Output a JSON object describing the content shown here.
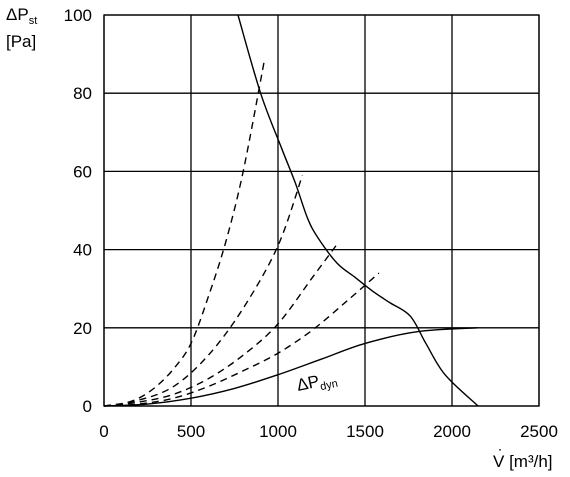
{
  "chart_data": {
    "type": "line",
    "title": "",
    "ylabel": {
      "line1_prefix": "ΔP",
      "line1_sub": "st",
      "line2": "[Pa]"
    },
    "xlabel": {
      "prefix": "V",
      "dot_accent": "˙",
      "unit": " [m³/h]"
    },
    "xlim": [
      0,
      2500
    ],
    "ylim": [
      0,
      100
    ],
    "x_ticks": [
      0,
      500,
      1000,
      1500,
      2000,
      2500
    ],
    "y_ticks": [
      0,
      20,
      40,
      60,
      80,
      100
    ],
    "grid": true,
    "series": [
      {
        "style": "solid",
        "points": [
          [
            770,
            100
          ],
          [
            900,
            80
          ],
          [
            1020,
            66
          ],
          [
            1100,
            57
          ],
          [
            1170,
            48
          ],
          [
            1230,
            43
          ],
          [
            1340,
            36.5
          ],
          [
            1440,
            33
          ],
          [
            1540,
            29.5
          ],
          [
            1640,
            26.5
          ],
          [
            1760,
            23
          ],
          [
            1850,
            16
          ],
          [
            1960,
            8
          ],
          [
            2150,
            0
          ]
        ]
      },
      {
        "name": "ΔP_dyn",
        "style": "solid",
        "annotation": {
          "prefix": "ΔP",
          "sub": "dyn"
        },
        "points": [
          [
            0,
            0
          ],
          [
            250,
            0.5
          ],
          [
            500,
            2
          ],
          [
            750,
            4.5
          ],
          [
            1000,
            8
          ],
          [
            1250,
            12
          ],
          [
            1500,
            16
          ],
          [
            1800,
            19
          ],
          [
            2150,
            20
          ]
        ]
      },
      {
        "style": "dashed",
        "points": [
          [
            0,
            0
          ],
          [
            100,
            0.5
          ],
          [
            200,
            2
          ],
          [
            300,
            5
          ],
          [
            400,
            9.5
          ],
          [
            500,
            16
          ],
          [
            600,
            28
          ],
          [
            700,
            42
          ],
          [
            800,
            60
          ],
          [
            920,
            88
          ]
        ]
      },
      {
        "style": "dashed",
        "points": [
          [
            0,
            0
          ],
          [
            200,
            1.5
          ],
          [
            400,
            5
          ],
          [
            600,
            13
          ],
          [
            800,
            25
          ],
          [
            1000,
            41
          ],
          [
            1140,
            59
          ]
        ]
      },
      {
        "style": "dashed",
        "points": [
          [
            0,
            0
          ],
          [
            200,
            1
          ],
          [
            400,
            3
          ],
          [
            600,
            7
          ],
          [
            800,
            13
          ],
          [
            1000,
            21
          ],
          [
            1200,
            33
          ],
          [
            1350,
            42
          ]
        ]
      },
      {
        "style": "dashed",
        "points": [
          [
            0,
            0
          ],
          [
            200,
            0.5
          ],
          [
            400,
            2
          ],
          [
            600,
            5
          ],
          [
            800,
            9
          ],
          [
            1000,
            13.5
          ],
          [
            1200,
            19.5
          ],
          [
            1400,
            27
          ],
          [
            1580,
            34
          ]
        ]
      }
    ]
  }
}
